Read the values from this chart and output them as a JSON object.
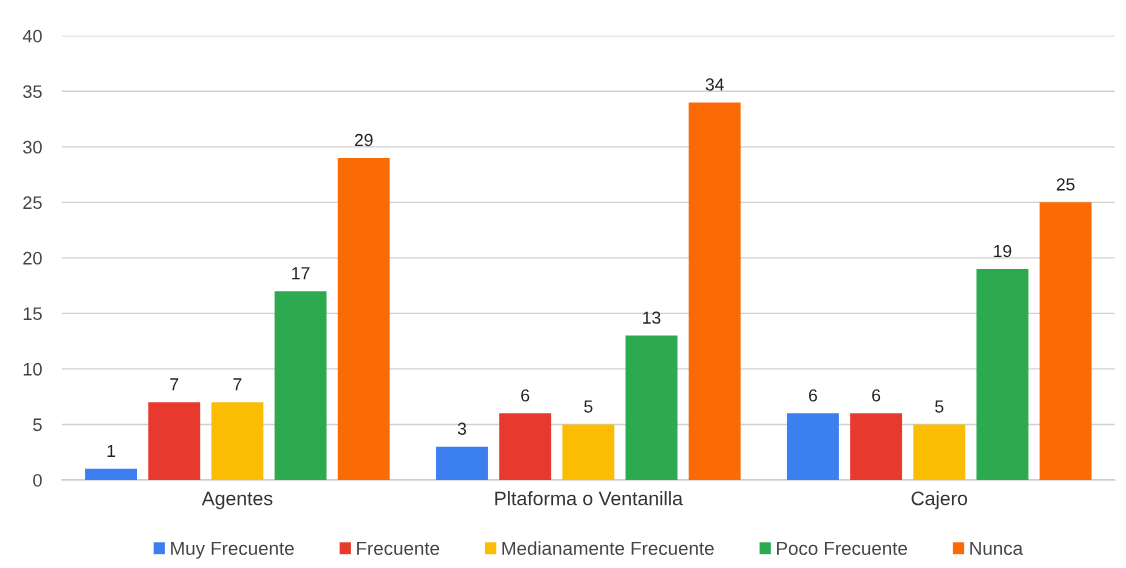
{
  "chart_data": {
    "type": "bar",
    "categories": [
      "Agentes",
      "Pltaforma o Ventanilla",
      "Cajero"
    ],
    "series": [
      {
        "name": "Muy Frecuente",
        "color": "#3b7ff0",
        "values": [
          1,
          3,
          6
        ]
      },
      {
        "name": "Frecuente",
        "color": "#e8392e",
        "values": [
          7,
          6,
          6
        ]
      },
      {
        "name": "Medianamente Frecuente",
        "color": "#fbbc04",
        "values": [
          7,
          5,
          5
        ]
      },
      {
        "name": "Poco Frecuente",
        "color": "#2da94f",
        "values": [
          17,
          13,
          19
        ]
      },
      {
        "name": "Nunca",
        "color": "#fa6a05",
        "values": [
          29,
          34,
          25
        ]
      }
    ],
    "ylim": [
      0,
      40
    ],
    "yticks": [
      0,
      5,
      10,
      15,
      20,
      25,
      30,
      35,
      40
    ],
    "grid": "y",
    "legend": "bottom",
    "data_labels": true
  }
}
